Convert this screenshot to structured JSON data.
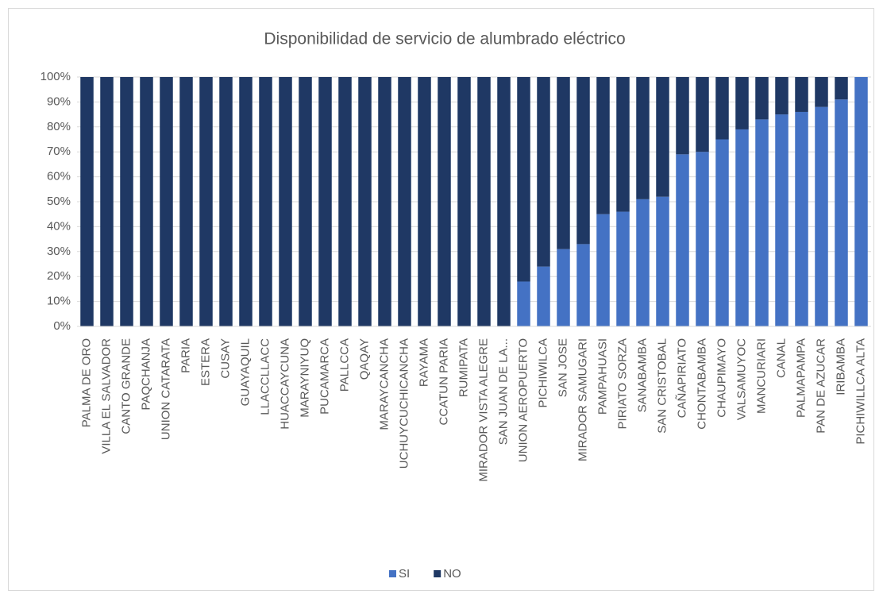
{
  "chart_data": {
    "type": "stacked_bar_100",
    "title": "Disponibilidad de servicio de alumbrado eléctrico",
    "categories": [
      "PALMA DE ORO",
      "VILLA EL SALVADOR",
      "CANTO GRANDE",
      "PAQCHANJA",
      "UNION CATARATA",
      "PARIA",
      "ESTERA",
      "CUSAY",
      "GUAYAQUIL",
      "LLACCLLACC",
      "HUACCAYCUNA",
      "MARAYNIYUQ",
      "PUCAMARCA",
      "PALLCCA",
      "QAQAY",
      "MARAYCANCHA",
      "UCHUYCUCHICANCHA",
      "RAYAMA",
      "CCATUN PARIA",
      "RUMIPATA",
      "MIRADOR VISTA ALEGRE",
      "SAN JUAN DE LA...",
      "UNION AEROPUERTO",
      "PICHIWILCA",
      "SAN JOSE",
      "MIRADOR SAMUGARI",
      "PAMPAHUASI",
      "PIRIATO SORZA",
      "SANABAMBA",
      "SAN CRISTOBAL",
      "CAÑAPIRIATO",
      "CHONTABAMBA",
      "CHAUPIMAYO",
      "VALSAMUYOC",
      "MANCURIARI",
      "CANAL",
      "PALMAPAMPA",
      "PAN DE AZUCAR",
      "IRIBAMBA",
      "PICHIWILLCA ALTA"
    ],
    "series": [
      {
        "name": "SI",
        "color": "#4472c4",
        "values": [
          0,
          0,
          0,
          0,
          0,
          0,
          0,
          0,
          0,
          0,
          0,
          0,
          0,
          0,
          0,
          0,
          0,
          0,
          0,
          0,
          0,
          0,
          18,
          24,
          31,
          33,
          45,
          46,
          51,
          52,
          69,
          70,
          75,
          79,
          83,
          85,
          86,
          88,
          91,
          100
        ]
      },
      {
        "name": "NO",
        "color": "#1f3864",
        "values": [
          100,
          100,
          100,
          100,
          100,
          100,
          100,
          100,
          100,
          100,
          100,
          100,
          100,
          100,
          100,
          100,
          100,
          100,
          100,
          100,
          100,
          100,
          82,
          76,
          69,
          67,
          55,
          54,
          49,
          48,
          31,
          30,
          25,
          21,
          17,
          15,
          14,
          12,
          9,
          0
        ]
      }
    ],
    "ylim": [
      0,
      100
    ],
    "yticks": [
      {
        "value": 0,
        "label": "0%"
      },
      {
        "value": 10,
        "label": "10%"
      },
      {
        "value": 20,
        "label": "20%"
      },
      {
        "value": 30,
        "label": "30%"
      },
      {
        "value": 40,
        "label": "40%"
      },
      {
        "value": 50,
        "label": "50%"
      },
      {
        "value": 60,
        "label": "60%"
      },
      {
        "value": 70,
        "label": "70%"
      },
      {
        "value": 80,
        "label": "80%"
      },
      {
        "value": 90,
        "label": "90%"
      },
      {
        "value": 100,
        "label": "100%"
      }
    ],
    "grid": true,
    "legend": "bottom"
  }
}
